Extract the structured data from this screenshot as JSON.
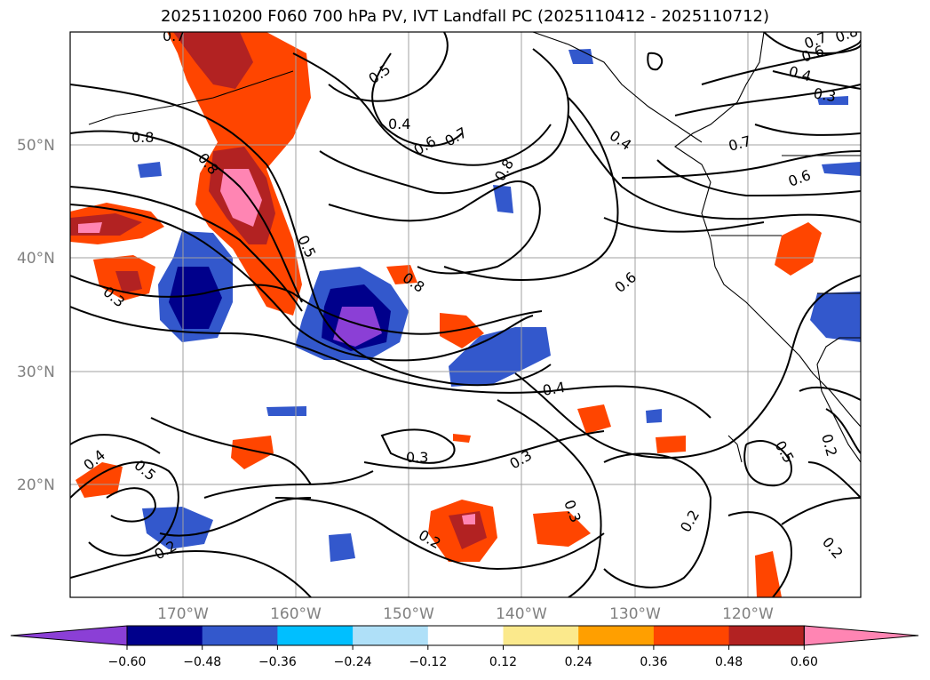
{
  "title": "2025110200 F060 700 hPa PV, IVT Landfall PC (2025110412 - 2025110712)",
  "chart_data": {
    "type": "map",
    "xlabel": "",
    "ylabel": "",
    "lon_ticks": [
      "170°W",
      "160°W",
      "150°W",
      "140°W",
      "130°W",
      "120°W"
    ],
    "lat_ticks": [
      "50°N",
      "40°N",
      "30°N",
      "20°N"
    ],
    "colorbar": {
      "ticks": [
        "−0.60",
        "−0.48",
        "−0.36",
        "−0.24",
        "−0.12",
        "0.12",
        "0.24",
        "0.36",
        "0.48",
        "0.60"
      ],
      "colors": [
        "#8b3fd6",
        "#00008b",
        "#3358cc",
        "#00bfff",
        "#afe0f8",
        "#ffffff",
        "#fbe98c",
        "#ff9f00",
        "#ff4500",
        "#b22222",
        "#ff85b3"
      ]
    },
    "contour_labels": [
      {
        "text": "0.8"
      },
      {
        "text": "0.5"
      },
      {
        "text": "0.4"
      },
      {
        "text": "0.6"
      },
      {
        "text": "0.7"
      },
      {
        "text": "0.8"
      },
      {
        "text": "0.4"
      },
      {
        "text": "0.7"
      },
      {
        "text": "0.6"
      },
      {
        "text": "0.4"
      },
      {
        "text": "0.3"
      },
      {
        "text": "0.8"
      },
      {
        "text": "0.7"
      },
      {
        "text": "0.6"
      },
      {
        "text": "0.8"
      },
      {
        "text": "0.5"
      },
      {
        "text": "0.3"
      },
      {
        "text": "0.8"
      },
      {
        "text": "0.6"
      },
      {
        "text": "0.4"
      },
      {
        "text": "0.4"
      },
      {
        "text": "0.5"
      },
      {
        "text": "0.3"
      },
      {
        "text": "0.3"
      },
      {
        "text": "0.3"
      },
      {
        "text": "0.2"
      },
      {
        "text": "0.2"
      },
      {
        "text": "0.2"
      },
      {
        "text": "0.5"
      },
      {
        "text": "0.2"
      },
      {
        "text": "0.2"
      },
      {
        "text": "0.7"
      }
    ]
  }
}
